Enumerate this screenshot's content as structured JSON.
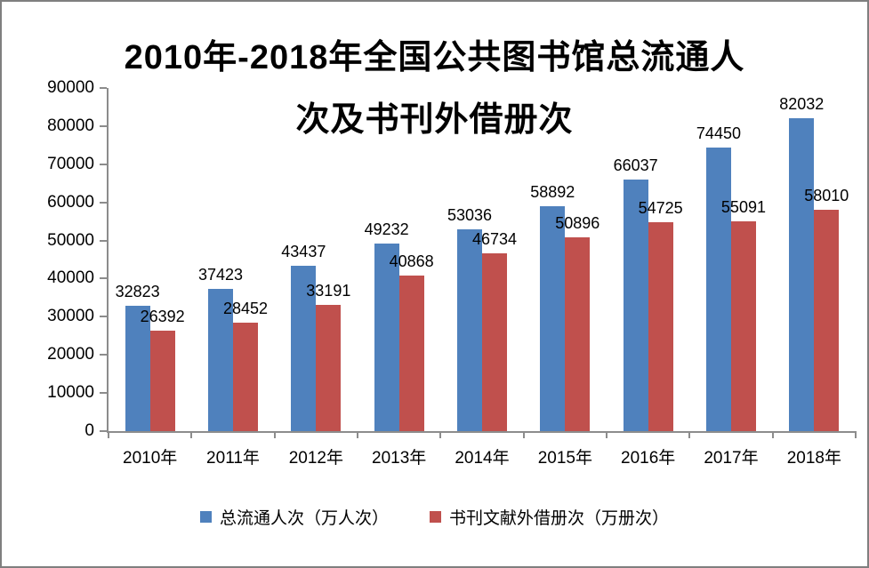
{
  "chart_data": {
    "type": "bar",
    "title": "2010年-2018年全国公共图书馆总流通人次及书刊外借册次",
    "title_line1": "2010年-2018年全国公共图书馆总流通人",
    "title_line2": "次及书刊外借册次",
    "categories": [
      "2010年",
      "2011年",
      "2012年",
      "2013年",
      "2014年",
      "2015年",
      "2016年",
      "2017年",
      "2018年"
    ],
    "series": [
      {
        "name": "总流通人次（万人次）",
        "color": "#4F81BD",
        "values": [
          32823,
          37423,
          43437,
          49232,
          53036,
          58892,
          66037,
          74450,
          82032
        ]
      },
      {
        "name": "书刊文献外借册次（万册次）",
        "color": "#C0504D",
        "values": [
          26392,
          28452,
          33191,
          40868,
          46734,
          50896,
          54725,
          55091,
          58010
        ]
      }
    ],
    "ylim": [
      0,
      90000
    ],
    "yticks": [
      0,
      10000,
      20000,
      30000,
      40000,
      50000,
      60000,
      70000,
      80000,
      90000
    ],
    "grid": false,
    "legend_position": "bottom",
    "axis_color": "#8C8C8C",
    "border_color": "#7F7F7F"
  }
}
